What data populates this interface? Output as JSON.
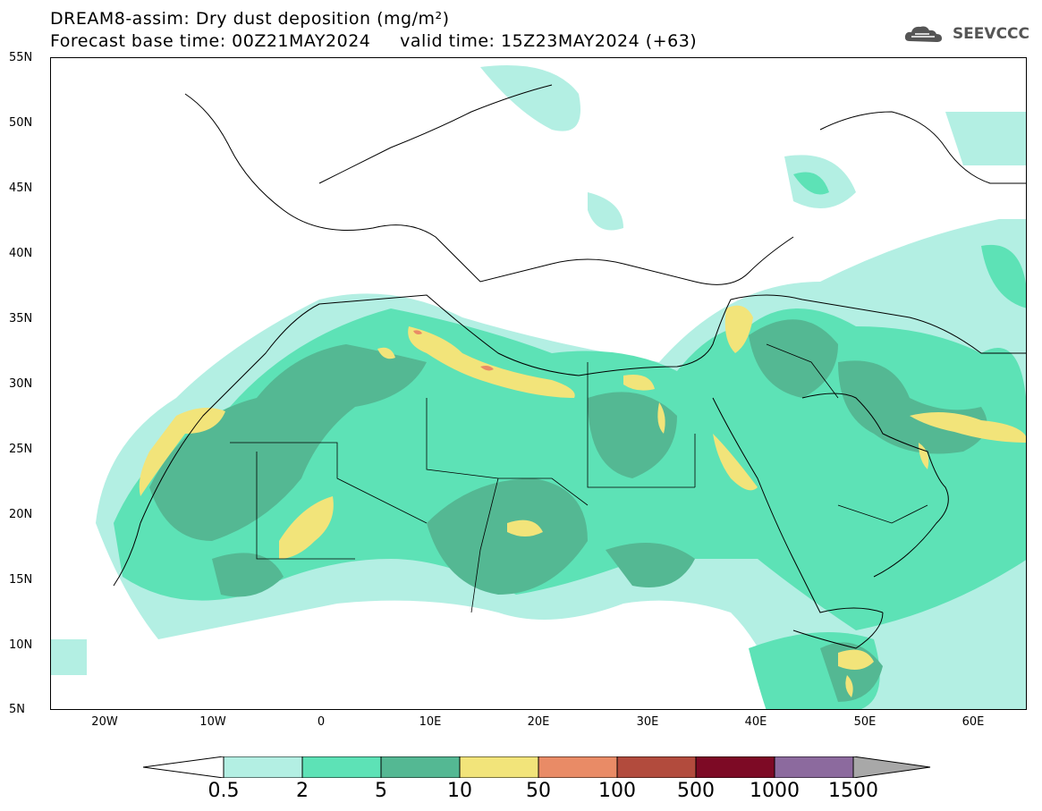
{
  "header": {
    "title_line1": "DREAM8-assim: Dry dust deposition (mg/m²)",
    "title_line2": "Forecast base time: 00Z21MAY2024     valid time: 15Z23MAY2024 (+63)",
    "logo_text": "SEEVCCC"
  },
  "axes": {
    "lat_labels": [
      "55N",
      "50N",
      "45N",
      "40N",
      "35N",
      "30N",
      "25N",
      "20N",
      "15N",
      "10N",
      "5N"
    ],
    "lon_labels": [
      "20W",
      "10W",
      "0",
      "10E",
      "20E",
      "30E",
      "40E",
      "50E",
      "60E"
    ]
  },
  "colorbar": {
    "labels": [
      "0.5",
      "2",
      "5",
      "10",
      "50",
      "100",
      "500",
      "1000",
      "1500"
    ],
    "colors": [
      "#b3efe3",
      "#5de2b6",
      "#54b893",
      "#f2e47a",
      "#e98b66",
      "#b24b3d",
      "#7d0a25",
      "#8c6a9e",
      "#a8a8a8"
    ]
  }
}
